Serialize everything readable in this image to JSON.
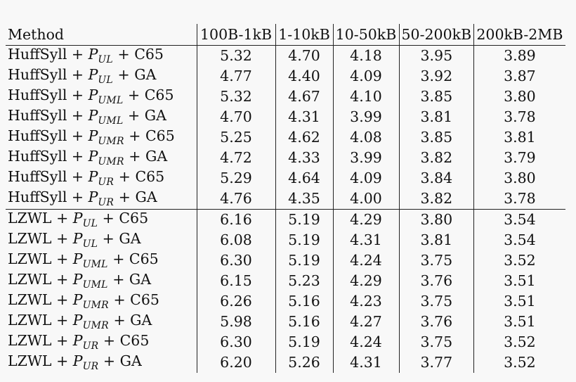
{
  "table": {
    "headers": [
      "Method",
      "100B-1kB",
      "1-10kB",
      "10-50kB",
      "50-200kB",
      "200kB-2MB"
    ],
    "rows": [
      {
        "base": "HuffSyll",
        "sub": "UL",
        "suffix": "C65",
        "values": [
          "5.32",
          "4.70",
          "4.18",
          "3.95",
          "3.89"
        ]
      },
      {
        "base": "HuffSyll",
        "sub": "UL",
        "suffix": "GA",
        "values": [
          "4.77",
          "4.40",
          "4.09",
          "3.92",
          "3.87"
        ]
      },
      {
        "base": "HuffSyll",
        "sub": "UML",
        "suffix": "C65",
        "values": [
          "5.32",
          "4.67",
          "4.10",
          "3.85",
          "3.80"
        ]
      },
      {
        "base": "HuffSyll",
        "sub": "UML",
        "suffix": "GA",
        "values": [
          "4.70",
          "4.31",
          "3.99",
          "3.81",
          "3.78"
        ]
      },
      {
        "base": "HuffSyll",
        "sub": "UMR",
        "suffix": "C65",
        "values": [
          "5.25",
          "4.62",
          "4.08",
          "3.85",
          "3.81"
        ]
      },
      {
        "base": "HuffSyll",
        "sub": "UMR",
        "suffix": "GA",
        "values": [
          "4.72",
          "4.33",
          "3.99",
          "3.82",
          "3.79"
        ]
      },
      {
        "base": "HuffSyll",
        "sub": "UR",
        "suffix": "C65",
        "values": [
          "5.29",
          "4.64",
          "4.09",
          "3.84",
          "3.80"
        ]
      },
      {
        "base": "HuffSyll",
        "sub": "UR",
        "suffix": "GA",
        "values": [
          "4.76",
          "4.35",
          "4.00",
          "3.82",
          "3.78"
        ]
      },
      {
        "base": "LZWL",
        "sub": "UL",
        "suffix": "C65",
        "values": [
          "6.16",
          "5.19",
          "4.29",
          "3.80",
          "3.54"
        ]
      },
      {
        "base": "LZWL",
        "sub": "UL",
        "suffix": "GA",
        "values": [
          "6.08",
          "5.19",
          "4.31",
          "3.81",
          "3.54"
        ]
      },
      {
        "base": "LZWL",
        "sub": "UML",
        "suffix": "C65",
        "values": [
          "6.30",
          "5.19",
          "4.24",
          "3.75",
          "3.52"
        ]
      },
      {
        "base": "LZWL",
        "sub": "UML",
        "suffix": "GA",
        "values": [
          "6.15",
          "5.23",
          "4.29",
          "3.76",
          "3.51"
        ]
      },
      {
        "base": "LZWL",
        "sub": "UMR",
        "suffix": "C65",
        "values": [
          "6.26",
          "5.16",
          "4.23",
          "3.75",
          "3.51"
        ]
      },
      {
        "base": "LZWL",
        "sub": "UMR",
        "suffix": "GA",
        "values": [
          "5.98",
          "5.16",
          "4.27",
          "3.76",
          "3.51"
        ]
      },
      {
        "base": "LZWL",
        "sub": "UR",
        "suffix": "C65",
        "values": [
          "6.30",
          "5.19",
          "4.24",
          "3.75",
          "3.52"
        ]
      },
      {
        "base": "LZWL",
        "sub": "UR",
        "suffix": "GA",
        "values": [
          "6.20",
          "5.26",
          "4.31",
          "3.77",
          "3.52"
        ]
      }
    ]
  }
}
